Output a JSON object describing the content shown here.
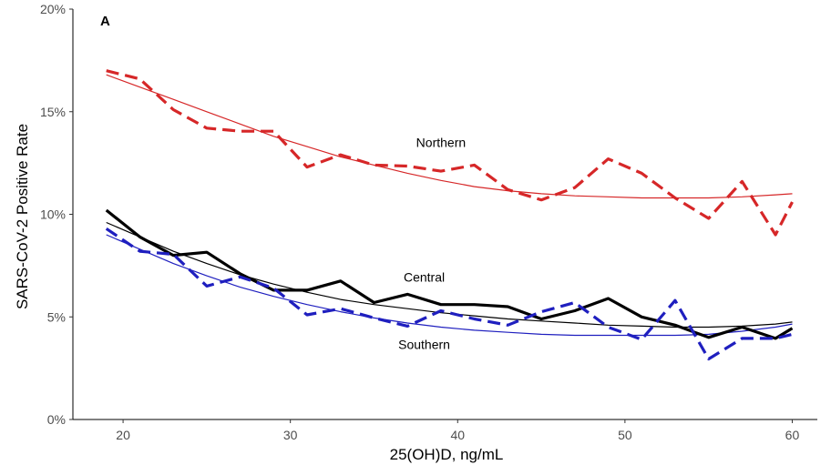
{
  "chart_data": {
    "type": "line",
    "panel_label": "A",
    "xlabel": "25(OH)D, ng/mL",
    "ylabel": "SARS-CoV-2 Positive Rate",
    "xlim": [
      17,
      61.5
    ],
    "ylim": [
      0,
      20
    ],
    "x_ticks": [
      20,
      30,
      40,
      50,
      60
    ],
    "y_ticks": [
      0,
      5,
      10,
      15,
      20
    ],
    "y_tick_labels": [
      "0%",
      "5%",
      "10%",
      "15%",
      "20%"
    ],
    "x_tick_labels": [
      "20",
      "30",
      "40",
      "50",
      "60"
    ],
    "grid": false,
    "x": [
      19,
      21,
      23,
      25,
      27,
      29,
      31,
      33,
      35,
      37,
      39,
      41,
      43,
      45,
      47,
      49,
      51,
      53,
      55,
      57,
      59,
      60
    ],
    "series": [
      {
        "name": "Northern",
        "color": "#d62728",
        "style": "dashed",
        "values": [
          17.0,
          16.6,
          15.1,
          14.2,
          14.05,
          14.05,
          12.3,
          12.9,
          12.4,
          12.35,
          12.1,
          12.4,
          11.2,
          10.7,
          11.3,
          12.7,
          12.0,
          10.8,
          9.8,
          11.6,
          9.0,
          10.6
        ],
        "fit": [
          16.8,
          16.2,
          15.6,
          15.0,
          14.4,
          13.8,
          13.3,
          12.8,
          12.4,
          12.0,
          11.65,
          11.35,
          11.15,
          11.0,
          10.9,
          10.85,
          10.8,
          10.8,
          10.8,
          10.85,
          10.95,
          11.0
        ],
        "label_at": [
          39,
          13.5
        ]
      },
      {
        "name": "Central",
        "color": "#000000",
        "style": "solid",
        "values": [
          10.2,
          8.9,
          8.0,
          8.15,
          7.1,
          6.3,
          6.3,
          6.75,
          5.7,
          6.1,
          5.6,
          5.6,
          5.5,
          4.9,
          5.3,
          5.9,
          5.0,
          4.6,
          4.0,
          4.5,
          3.95,
          4.45
        ],
        "fit": [
          9.6,
          8.9,
          8.2,
          7.6,
          7.05,
          6.6,
          6.2,
          5.85,
          5.6,
          5.4,
          5.2,
          5.05,
          4.9,
          4.8,
          4.7,
          4.6,
          4.55,
          4.5,
          4.5,
          4.55,
          4.65,
          4.75
        ],
        "label_at": [
          38,
          6.95
        ]
      },
      {
        "name": "Southern",
        "color": "#1f1fbf",
        "style": "dashed",
        "values": [
          9.3,
          8.2,
          8.05,
          6.5,
          6.95,
          6.4,
          5.1,
          5.4,
          4.95,
          4.55,
          5.3,
          4.9,
          4.6,
          5.25,
          5.7,
          4.5,
          3.9,
          5.8,
          2.95,
          3.95,
          3.95,
          4.15
        ],
        "fit": [
          9.0,
          8.3,
          7.6,
          7.0,
          6.45,
          6.0,
          5.6,
          5.25,
          4.95,
          4.7,
          4.5,
          4.35,
          4.25,
          4.15,
          4.1,
          4.1,
          4.1,
          4.1,
          4.15,
          4.3,
          4.5,
          4.65
        ],
        "label_at": [
          38,
          3.65
        ]
      }
    ]
  }
}
